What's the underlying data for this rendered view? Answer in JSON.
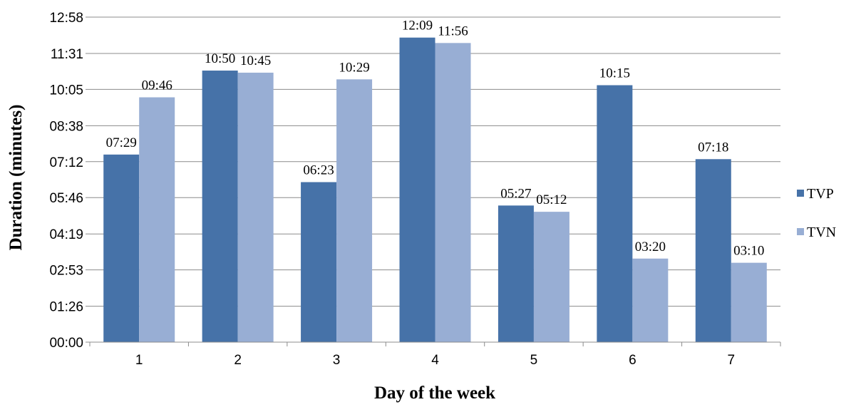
{
  "chart_data": {
    "type": "bar",
    "title": "",
    "xlabel": "Day of the week",
    "ylabel": "Duration (minutes)",
    "categories": [
      "1",
      "2",
      "3",
      "4",
      "5",
      "6",
      "7"
    ],
    "yticks": [
      "00:00",
      "01:26",
      "02:53",
      "04:19",
      "05:46",
      "07:12",
      "08:38",
      "10:05",
      "11:31",
      "12:58"
    ],
    "ylim": [
      "00:00",
      "12:58"
    ],
    "grid": true,
    "legend_position": "right",
    "series": [
      {
        "name": "TVP",
        "color": "#4672a8",
        "values": [
          "07:29",
          "10:50",
          "06:23",
          "12:09",
          "05:27",
          "10:15",
          "07:18"
        ]
      },
      {
        "name": "TVN",
        "color": "#98aed4",
        "values": [
          "09:46",
          "10:45",
          "10:29",
          "11:56",
          "05:12",
          "03:20",
          "03:10"
        ]
      }
    ]
  }
}
